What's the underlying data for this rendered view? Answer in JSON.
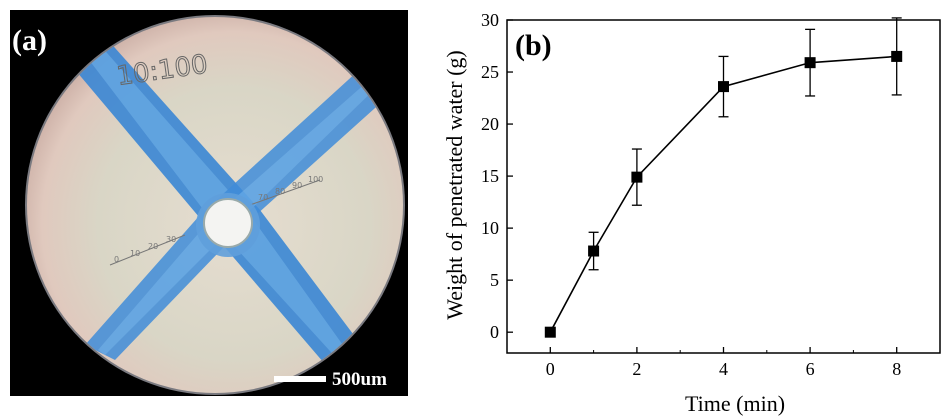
{
  "panel_a": {
    "label": "(a)",
    "overlay_text": "10:100",
    "scale_bar_label": "500um",
    "reticle_numbers": [
      "0",
      "10",
      "20",
      "30"
    ],
    "reticle_numbers_right": [
      "70",
      "80",
      "90",
      "100"
    ]
  },
  "panel_b": {
    "label": "(b)"
  },
  "chart_data": {
    "type": "line",
    "xlabel": "Time (min)",
    "ylabel": "Weight of penetrated water (g)",
    "xlim": [
      -1,
      9
    ],
    "ylim": [
      -2,
      30
    ],
    "xticks": [
      0,
      2,
      4,
      6,
      8
    ],
    "yticks": [
      0,
      5,
      10,
      15,
      20,
      25,
      30
    ],
    "series": [
      {
        "x": [
          0,
          1,
          2,
          4,
          6,
          8
        ],
        "y": [
          0,
          7.8,
          14.9,
          23.6,
          25.9,
          26.5
        ],
        "err": [
          0,
          1.8,
          2.7,
          2.9,
          3.2,
          3.7
        ],
        "marker": "square",
        "color": "#000000"
      }
    ],
    "grid": false
  }
}
